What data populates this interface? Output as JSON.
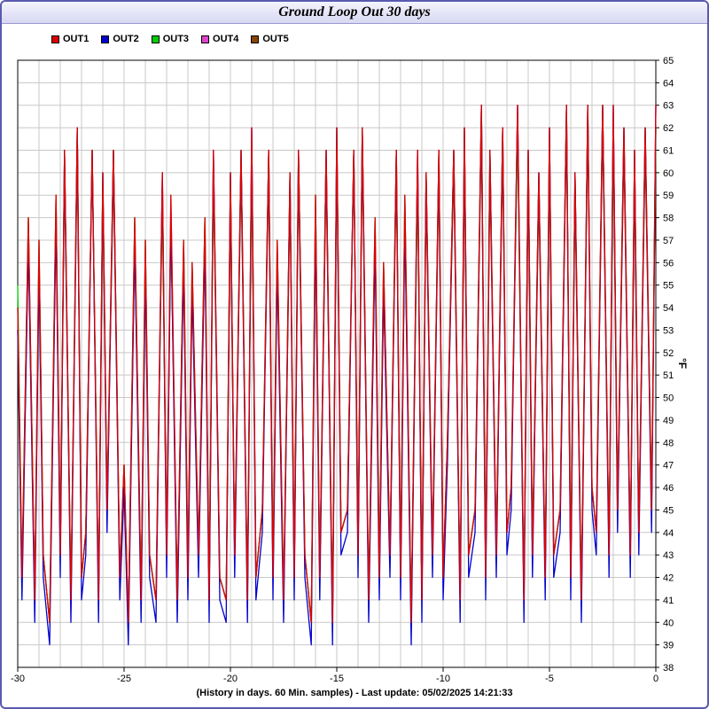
{
  "window": {
    "title": "Ground Loop Out 30 days"
  },
  "footer": {
    "text": "(History in days. 60 Min. samples) - Last update: 05/02/2025 14:21:33"
  },
  "chart_data": {
    "type": "line",
    "title": "Ground Loop Out 30 days",
    "xlabel": "(History in days. 60 Min. samples) - Last update: 05/02/2025 14:21:33",
    "ylabel": "°F",
    "xlim": [
      -30,
      0
    ],
    "ylim": [
      38,
      65
    ],
    "x_ticks": [
      -30,
      -25,
      -20,
      -15,
      -10,
      -5,
      0
    ],
    "y_ticks": [
      38,
      39,
      40,
      41,
      42,
      43,
      44,
      45,
      46,
      47,
      48,
      49,
      50,
      51,
      52,
      53,
      54,
      55,
      56,
      57,
      58,
      59,
      60,
      61,
      62,
      63,
      64,
      65
    ],
    "grid": true,
    "legend_position": "top-left",
    "x": [
      -30.0,
      -29.8,
      -29.5,
      -29.2,
      -29.0,
      -28.8,
      -28.5,
      -28.2,
      -28.0,
      -27.8,
      -27.5,
      -27.2,
      -27.0,
      -26.8,
      -26.5,
      -26.2,
      -26.0,
      -25.8,
      -25.5,
      -25.2,
      -25.0,
      -24.8,
      -24.5,
      -24.2,
      -24.0,
      -23.8,
      -23.5,
      -23.2,
      -23.0,
      -22.8,
      -22.5,
      -22.2,
      -22.0,
      -21.8,
      -21.5,
      -21.2,
      -21.0,
      -20.8,
      -20.5,
      -20.2,
      -20.0,
      -19.8,
      -19.5,
      -19.2,
      -19.0,
      -18.8,
      -18.5,
      -18.2,
      -18.0,
      -17.8,
      -17.5,
      -17.2,
      -17.0,
      -16.8,
      -16.5,
      -16.2,
      -16.0,
      -15.8,
      -15.5,
      -15.2,
      -15.0,
      -14.8,
      -14.5,
      -14.2,
      -14.0,
      -13.8,
      -13.5,
      -13.2,
      -13.0,
      -12.8,
      -12.5,
      -12.2,
      -12.0,
      -11.8,
      -11.5,
      -11.2,
      -11.0,
      -10.8,
      -10.5,
      -10.2,
      -10.0,
      -9.8,
      -9.5,
      -9.2,
      -9.0,
      -8.8,
      -8.5,
      -8.2,
      -8.0,
      -7.8,
      -7.5,
      -7.2,
      -7.0,
      -6.8,
      -6.5,
      -6.2,
      -6.0,
      -5.8,
      -5.5,
      -5.2,
      -5.0,
      -4.8,
      -4.5,
      -4.2,
      -4.0,
      -3.8,
      -3.5,
      -3.2,
      -3.0,
      -2.8,
      -2.5,
      -2.2,
      -2.0,
      -1.8,
      -1.5,
      -1.2,
      -1.0,
      -0.8,
      -0.5,
      -0.2,
      0.0
    ],
    "series": [
      {
        "name": "OUT1",
        "color": "#dd0000",
        "values": [
          54,
          42,
          58,
          41,
          57,
          43,
          40,
          59,
          43,
          61,
          41,
          62,
          42,
          44,
          61,
          41,
          60,
          45,
          61,
          42,
          47,
          40,
          58,
          41,
          57,
          43,
          41,
          60,
          43,
          59,
          41,
          57,
          42,
          56,
          43,
          58,
          41,
          61,
          42,
          41,
          60,
          43,
          61,
          41,
          62,
          42,
          45,
          61,
          42,
          57,
          41,
          60,
          42,
          61,
          43,
          40,
          59,
          42,
          61,
          40,
          62,
          44,
          45,
          61,
          43,
          62,
          41,
          58,
          42,
          56,
          43,
          61,
          42,
          59,
          40,
          61,
          41,
          60,
          43,
          61,
          42,
          48,
          61,
          41,
          62,
          43,
          45,
          63,
          42,
          61,
          43,
          62,
          44,
          46,
          63,
          41,
          61,
          43,
          60,
          42,
          62,
          43,
          45,
          63,
          42,
          60,
          41,
          63,
          46,
          44,
          63,
          43,
          63,
          45,
          62,
          43,
          61,
          44,
          62,
          45,
          63
        ]
      },
      {
        "name": "OUT2",
        "color": "#0000cc",
        "values": [
          53,
          41,
          57,
          40,
          56,
          42,
          39,
          58,
          42,
          61,
          40,
          62,
          41,
          43,
          61,
          40,
          60,
          44,
          61,
          41,
          46,
          39,
          57,
          40,
          56,
          42,
          40,
          60,
          42,
          58,
          40,
          56,
          41,
          55,
          42,
          57,
          40,
          61,
          41,
          40,
          60,
          42,
          61,
          40,
          62,
          41,
          44,
          61,
          41,
          56,
          40,
          60,
          41,
          61,
          42,
          39,
          58,
          41,
          61,
          39,
          62,
          43,
          44,
          61,
          42,
          62,
          40,
          57,
          41,
          55,
          42,
          61,
          41,
          58,
          39,
          61,
          40,
          60,
          42,
          61,
          41,
          47,
          61,
          40,
          62,
          42,
          44,
          63,
          41,
          61,
          42,
          62,
          43,
          45,
          63,
          40,
          61,
          42,
          60,
          41,
          62,
          42,
          44,
          63,
          41,
          60,
          40,
          63,
          45,
          43,
          63,
          42,
          63,
          44,
          62,
          42,
          61,
          43,
          62,
          44,
          63
        ]
      },
      {
        "name": "OUT3",
        "color": "#00cc00",
        "values": [
          55,
          42,
          58,
          41,
          57,
          43,
          40,
          59,
          43,
          61,
          41,
          62,
          42,
          44,
          61,
          41,
          60,
          45,
          61,
          42,
          47,
          40,
          58,
          41,
          57,
          43,
          41,
          59,
          43,
          58,
          41,
          57,
          42,
          56,
          43,
          58,
          41,
          60,
          42,
          41,
          60,
          43,
          61,
          41,
          61,
          42,
          45,
          61,
          42,
          57,
          41,
          60,
          42,
          61,
          43,
          40,
          59,
          42,
          61,
          40,
          62,
          44,
          45,
          61,
          43,
          62,
          41,
          58,
          42,
          56,
          43,
          61,
          42,
          59,
          40,
          60,
          41,
          60,
          43,
          61,
          42,
          48,
          61,
          41,
          62,
          43,
          45,
          63,
          42,
          61,
          43,
          62,
          44,
          46,
          62,
          41,
          61,
          43,
          60,
          42,
          62,
          43,
          45,
          63,
          42,
          60,
          41,
          63,
          46,
          44,
          63,
          43,
          62,
          45,
          62,
          43,
          61,
          44,
          62,
          45,
          62
        ]
      },
      {
        "name": "OUT4",
        "color": "#dd44cc",
        "values": [
          54,
          42,
          58,
          41,
          57,
          43,
          40,
          59,
          43,
          61,
          41,
          62,
          42,
          44,
          61,
          41,
          60,
          45,
          61,
          42,
          47,
          40,
          58,
          41,
          57,
          43,
          41,
          60,
          43,
          59,
          41,
          57,
          42,
          56,
          43,
          58,
          41,
          61,
          42,
          41,
          60,
          43,
          61,
          41,
          62,
          42,
          45,
          61,
          42,
          57,
          41,
          60,
          42,
          61,
          43,
          40,
          59,
          42,
          61,
          40,
          62,
          44,
          45,
          61,
          43,
          62,
          41,
          58,
          42,
          56,
          43,
          61,
          42,
          59,
          40,
          61,
          41,
          60,
          43,
          61,
          42,
          48,
          61,
          41,
          62,
          43,
          45,
          63,
          42,
          61,
          43,
          62,
          44,
          46,
          63,
          41,
          61,
          43,
          60,
          42,
          62,
          43,
          45,
          63,
          42,
          60,
          41,
          63,
          46,
          44,
          63,
          43,
          63,
          45,
          62,
          43,
          61,
          44,
          62,
          45,
          63
        ]
      },
      {
        "name": "OUT5",
        "color": "#884400",
        "values": [
          53,
          42,
          57,
          41,
          56,
          43,
          40,
          58,
          43,
          60,
          41,
          61,
          42,
          44,
          61,
          41,
          59,
          45,
          60,
          42,
          47,
          40,
          57,
          41,
          56,
          43,
          41,
          59,
          43,
          58,
          41,
          56,
          42,
          55,
          43,
          57,
          41,
          60,
          42,
          41,
          59,
          43,
          60,
          41,
          61,
          42,
          45,
          60,
          42,
          56,
          41,
          59,
          42,
          60,
          43,
          40,
          58,
          42,
          60,
          40,
          61,
          44,
          45,
          61,
          43,
          61,
          41,
          57,
          42,
          55,
          43,
          60,
          42,
          58,
          40,
          60,
          41,
          59,
          43,
          60,
          42,
          48,
          60,
          41,
          61,
          43,
          45,
          62,
          42,
          60,
          43,
          61,
          44,
          46,
          62,
          41,
          60,
          43,
          59,
          42,
          61,
          43,
          45,
          62,
          42,
          59,
          41,
          62,
          46,
          44,
          62,
          43,
          62,
          45,
          61,
          43,
          60,
          44,
          61,
          45,
          62
        ]
      }
    ]
  }
}
